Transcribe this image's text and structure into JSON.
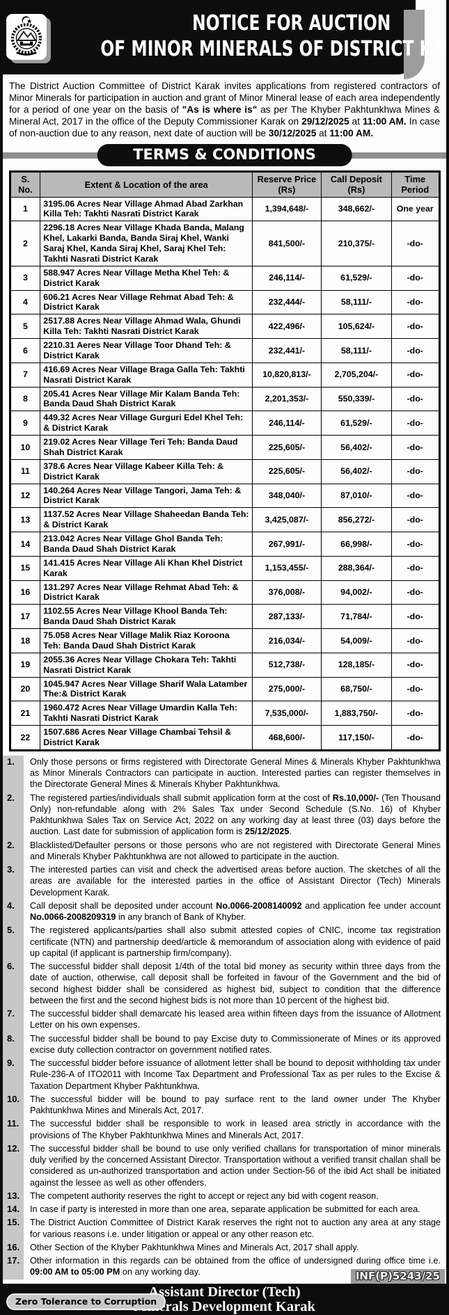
{
  "header": {
    "logo_icon": "kp-government-emblem",
    "title_line1": "NOTICE FOR AUCTION",
    "title_line2": "OF MINOR MINERALS OF DISTRICT KARAK"
  },
  "intro": "The District Auction Committee of District Karak invites applications from registered contractors of Minor Minerals for participation in auction and grant of Minor Mineral lease of each area independently for a period of one year on the basis of **\"As is where is\"** as per The Khyber Pakhtunkhwa Mines & Mineral Act, 2017 in the office of the Deputy Commissioner Karak on **29/12/2025** at **11:00 AM.** In case of non-auction due to any reason, next date of auction will be **30/12/2025** at **11:00 AM.**",
  "terms_bar_label": "TERMS & CONDITIONS",
  "table": {
    "headers": [
      "S. No.",
      "Extent & Location of the area",
      "Reserve Price (Rs)",
      "Call Deposit (Rs)",
      "Time Period"
    ],
    "rows": [
      {
        "no": "1",
        "location": "3195.06 Acres Near Village Ahmad Abad Zarkhan Killa Teh: Takhti Nasrati District Karak",
        "reserve": "1,394,648/-",
        "deposit": "348,662/-",
        "period": "One year"
      },
      {
        "no": "2",
        "location": "2296.18 Acres Near Village Khada Banda, Malang Khel, Lakarki Banda, Banda Siraj Khel, Wanki Saraj Khel, Kanda Siraj Khel, Saraj Khel Teh: Takhti Nasrati District Karak",
        "reserve": "841,500/-",
        "deposit": "210,375/-",
        "period": "-do-"
      },
      {
        "no": "3",
        "location": "588.947 Acres Near Village Metha Khel Teh: & District Karak",
        "reserve": "246,114/-",
        "deposit": "61,529/-",
        "period": "-do-"
      },
      {
        "no": "4",
        "location": "606.21 Acres Near Village Rehmat Abad Teh: & District Karak",
        "reserve": "232,444/-",
        "deposit": "58,111/-",
        "period": "-do-"
      },
      {
        "no": "5",
        "location": "2517.88 Acres Near Village Ahmad Wala, Ghundi Killa Teh: Takhti Nasrati District Karak",
        "reserve": "422,496/-",
        "deposit": "105,624/-",
        "period": "-do-"
      },
      {
        "no": "6",
        "location": "2210.31 Aeres Near Village Toor Dhand Teh: & District Karak",
        "reserve": "232,441/-",
        "deposit": "58,111/-",
        "period": "-do-"
      },
      {
        "no": "7",
        "location": "416.69 Acres Near Village Braga Galla Teh: Takhti Nasrati District Karak",
        "reserve": "10,820,813/-",
        "deposit": "2,705,204/-",
        "period": "-do-"
      },
      {
        "no": "8",
        "location": "205.41 Acres Near Village Mir Kalam Banda Teh: Banda Daud Shah District Karak",
        "reserve": "2,201,353/-",
        "deposit": "550,339/-",
        "period": "-do-"
      },
      {
        "no": "9",
        "location": "449.32 Acres Near Village Gurguri Edel Khel Teh: & District Karak",
        "reserve": "246,114/-",
        "deposit": "61,529/-",
        "period": "-do-"
      },
      {
        "no": "10",
        "location": "219.02 Acres Near Village Teri Teh: Banda Daud Shah District Karak",
        "reserve": "225,605/-",
        "deposit": "56,402/-",
        "period": "-do-"
      },
      {
        "no": "11",
        "location": "378.6 Acres Near Village Kabeer Killa Teh: & District Karak",
        "reserve": "225,605/-",
        "deposit": "56,402/-",
        "period": "-do-"
      },
      {
        "no": "12",
        "location": "140.264 Acres Near Village Tangori, Jama Teh: & District Karak",
        "reserve": "348,040/-",
        "deposit": "87,010/-",
        "period": "-do-"
      },
      {
        "no": "13",
        "location": "1137.52 Acres Near Village Shaheedan Banda Teh: & District Karak",
        "reserve": "3,425,087/-",
        "deposit": "856,272/-",
        "period": "-do-"
      },
      {
        "no": "14",
        "location": "213.042 Acres Near Village Ghol Banda Teh: Banda Daud Shah District Karak",
        "reserve": "267,991/-",
        "deposit": "66,998/-",
        "period": "-do-"
      },
      {
        "no": "15",
        "location": "141.415 Acres Near Village Ali Khan Khel District Karak",
        "reserve": "1,153,455/-",
        "deposit": "288,364/-",
        "period": "-do-"
      },
      {
        "no": "16",
        "location": "131.297 Acres Near Village Rehmat Abad Teh: & District Karak",
        "reserve": "376,008/-",
        "deposit": "94,002/-",
        "period": "-do-"
      },
      {
        "no": "17",
        "location": "1102.55 Acres Near Village Khool Banda Teh: Banda Daud Shah District Karak",
        "reserve": "287,133/-",
        "deposit": "71,784/-",
        "period": "-do-"
      },
      {
        "no": "18",
        "location": "75.058 Acres Near Village Malik Riaz Koroona Teh: Banda Daud Shah District Karak",
        "reserve": "216,034/-",
        "deposit": "54,009/-",
        "period": "-do-"
      },
      {
        "no": "19",
        "location": "2055.36 Acres Near Village Chokara Teh: Takhti Nasrati District Karak",
        "reserve": "512,738/-",
        "deposit": "128,185/-",
        "period": "-do-"
      },
      {
        "no": "20",
        "location": "1045.947 Acres Near Village Sharif Wala Latamber The:& District Karak",
        "reserve": "275,000/-",
        "deposit": "68,750/-",
        "period": "-do-"
      },
      {
        "no": "21",
        "location": "1960.472 Acres Near Village Umardin Kalla Teh: Takhti Nasrati District Karak",
        "reserve": "7,535,000/-",
        "deposit": "1,883,750/-",
        "period": "-do-"
      },
      {
        "no": "22",
        "location": "1507.686 Acres Near Village Chambai Tehsil & District Karak",
        "reserve": "468,600/-",
        "deposit": "117,150/-",
        "period": "-do-"
      }
    ]
  },
  "conditions": [
    {
      "num": "1.",
      "text": "Only those persons or firms registered with Directorate General Mines & Minerals Khyber Pakhtunkhwa as Minor Minerals Contractors can participate in auction. Interested parties can register themselves in the Directorate General Mines & Minerals Khyber Pakhtunkhwa."
    },
    {
      "num": "2.",
      "text": "The registered parties/individuals shall submit application form at the cost of **Rs.10,000/-** (Ten Thousand Only) non-refundable along with 2% Sales Tax under Second Schedule (S.No. 16) of Khyber Pakhtunkhwa Sales Tax on Service Act, 2022 on any working day at least three (03) days before the auction. Last date for submission of application form is **25/12/2025**."
    },
    {
      "num": "2.",
      "text": "Blacklisted/Defaulter persons or those persons who are not registered with Directorate General Mines and Minerals Khyber Pakhtunkhwa are not allowed to participate in the auction."
    },
    {
      "num": "3.",
      "text": "The interested parties can visit and check the advertised areas before auction. The sketches of all the areas are available for the interested parties in the office of Assistant Director (Tech) Minerals Development Karak."
    },
    {
      "num": "4.",
      "text": "Call deposit shall be deposited under account **No.0066-2008140092** and application fee under account **No.0066-2008209319** in any branch of Bank of Khyber."
    },
    {
      "num": "5.",
      "text": "The registered applicants/parties shall also submit attested copies of CNIC, income tax registration certificate (NTN) and partnership deed/article & memorandum of association along with evidence of paid up capital (if applicant is partnership firm/company)."
    },
    {
      "num": "6.",
      "text": "The successful bidder shall deposit 1/4th of the total bid money as security within three days from the date of auction, otherwise, call deposit shall be forfeited in favour of the Government and the bid of second highest bidder shall be considered as highest bid, subject to condition that the difference between the first and the second highest bids is not more than 10 percent of the highest bid."
    },
    {
      "num": "7.",
      "text": "The successful bidder shall demarcate his leased area within fifteen days from the issuance of Allotment Letter on his own expenses."
    },
    {
      "num": "8.",
      "text": "The successful bidder shall be bound to pay Excise duty to Commissionerate of Mines or its approved excise duty collection contractor on government notified rates."
    },
    {
      "num": "9.",
      "text": "The successful bidder before issuance of allotment letter shall be bound to deposit withholding tax under Rule-236-A of ITO2011 with Income Tax Department and Professional Tax as per rules to the Excise & Taxation Department Khyber Pakhtunkhwa."
    },
    {
      "num": "10.",
      "text": "The successful bidder will be bound to pay surface rent to the land owner under The Khyber Pakhtunkhwa Mines and Minerals Act, 2017."
    },
    {
      "num": "11.",
      "text": "The successful bidder shall be responsible to work in leased area strictly in accordance with the provisions of The Khyber Pakhtunkhwa Mines and Minerals Act, 2017."
    },
    {
      "num": "12.",
      "text": "The successful bidder shall be bound to use only verified challans for transportation of minor minerals duly verified by the concerned Assistant Director. Transportation without a verified transit challan shall be considered as un-authorized transportation and action under Section-56 of the ibid Act shall be initiated against the lessee as well as other offenders."
    },
    {
      "num": "13.",
      "text": "The competent authority reserves the right to accept or reject any bid with cogent reason."
    },
    {
      "num": "14.",
      "text": "In case if party is interested in more than one area, separate application be submitted for each area."
    },
    {
      "num": "15.",
      "text": "The District Auction Committee of District Karak reserves the right not to auction any area at any stage for various reasons i.e. under litigation or appeal or any other reason etc."
    },
    {
      "num": "16.",
      "text": "Other Section of the Khyber Pakhtunkhwa Mines and Minerals Act, 2017 shall apply."
    },
    {
      "num": "17.",
      "text": "Other information in this regards can be obtained from the office of undersigned during office time i.e. **09:00 AM to 05:00 PM** on any working day."
    }
  ],
  "footer": {
    "inf_code": "INF(P)5243/25",
    "zero_tolerance_badge": "Zero Tolerance to Corruption",
    "signature_line1": "Assistant Director (Tech)",
    "signature_line2": "Minerals Development Karak"
  }
}
